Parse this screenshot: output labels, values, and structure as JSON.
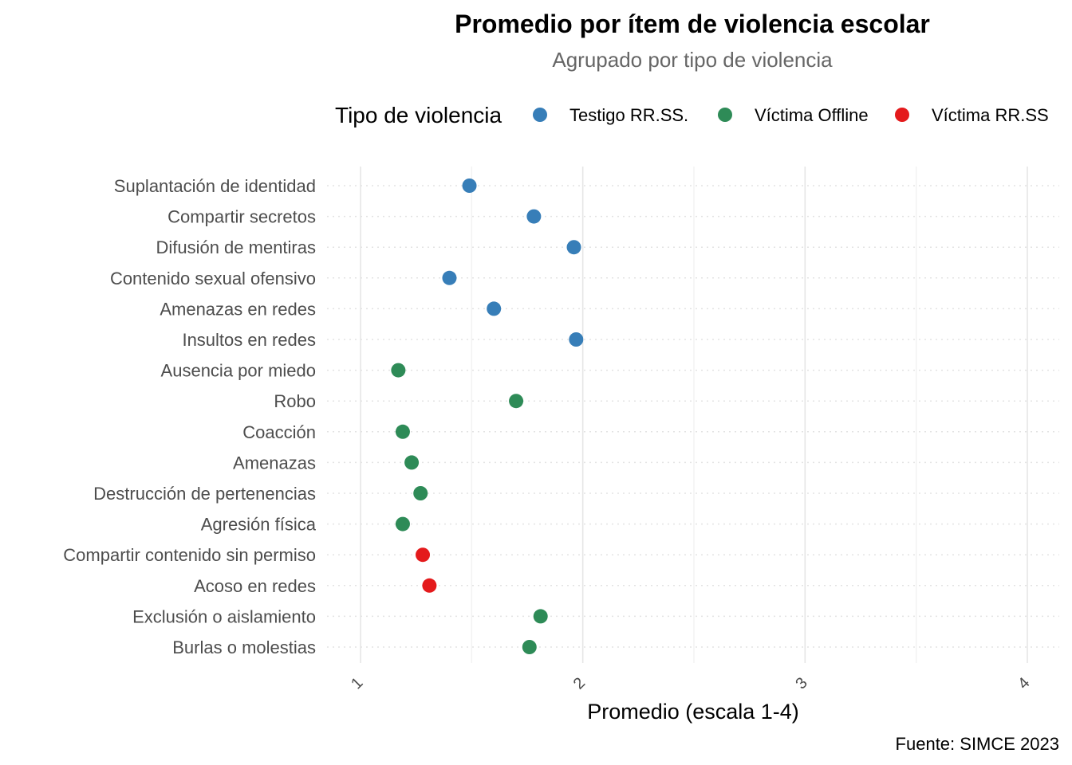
{
  "chart_data": {
    "type": "scatter",
    "title": "Promedio por ítem de violencia escolar",
    "subtitle": "Agrupado por tipo de violencia",
    "xlabel": "Promedio (escala 1-4)",
    "ylabel": "",
    "caption": "Fuente: SIMCE 2023",
    "xlim": [
      1,
      4
    ],
    "xticks": [
      "1",
      "2",
      "3",
      "4"
    ],
    "grid": true,
    "legend": {
      "title": "Tipo de violencia",
      "position": "top",
      "entries": [
        {
          "name": "Testigo RR.SS.",
          "color": "#377EB8"
        },
        {
          "name": "Víctima Offline",
          "color": "#2E8B57"
        },
        {
          "name": "Víctima RR.SS",
          "color": "#E41A1C"
        }
      ]
    },
    "categories": [
      "Suplantación de identidad",
      "Compartir secretos",
      "Difusión de mentiras",
      "Contenido sexual ofensivo",
      "Amenazas en redes",
      "Insultos en redes",
      "Ausencia por miedo",
      "Robo",
      "Coacción",
      "Amenazas",
      "Destrucción de pertenencias",
      "Agresión física",
      "Compartir contenido sin permiso",
      "Acoso en redes",
      "Exclusión o aislamiento",
      "Burlas o molestias"
    ],
    "points": [
      {
        "item": "Suplantación de identidad",
        "value": 1.49,
        "series": "Testigo RR.SS."
      },
      {
        "item": "Compartir secretos",
        "value": 1.78,
        "series": "Testigo RR.SS."
      },
      {
        "item": "Difusión de mentiras",
        "value": 1.96,
        "series": "Testigo RR.SS."
      },
      {
        "item": "Contenido sexual ofensivo",
        "value": 1.4,
        "series": "Testigo RR.SS."
      },
      {
        "item": "Amenazas en redes",
        "value": 1.6,
        "series": "Testigo RR.SS."
      },
      {
        "item": "Insultos en redes",
        "value": 1.97,
        "series": "Testigo RR.SS."
      },
      {
        "item": "Ausencia por miedo",
        "value": 1.17,
        "series": "Víctima Offline"
      },
      {
        "item": "Robo",
        "value": 1.7,
        "series": "Víctima Offline"
      },
      {
        "item": "Coacción",
        "value": 1.19,
        "series": "Víctima Offline"
      },
      {
        "item": "Amenazas",
        "value": 1.23,
        "series": "Víctima Offline"
      },
      {
        "item": "Destrucción de pertenencias",
        "value": 1.27,
        "series": "Víctima Offline"
      },
      {
        "item": "Agresión física",
        "value": 1.19,
        "series": "Víctima Offline"
      },
      {
        "item": "Compartir contenido sin permiso",
        "value": 1.28,
        "series": "Víctima RR.SS"
      },
      {
        "item": "Acoso en redes",
        "value": 1.31,
        "series": "Víctima RR.SS"
      },
      {
        "item": "Exclusión o aislamiento",
        "value": 1.81,
        "series": "Víctima Offline"
      },
      {
        "item": "Burlas o molestias",
        "value": 1.76,
        "series": "Víctima Offline"
      }
    ]
  }
}
